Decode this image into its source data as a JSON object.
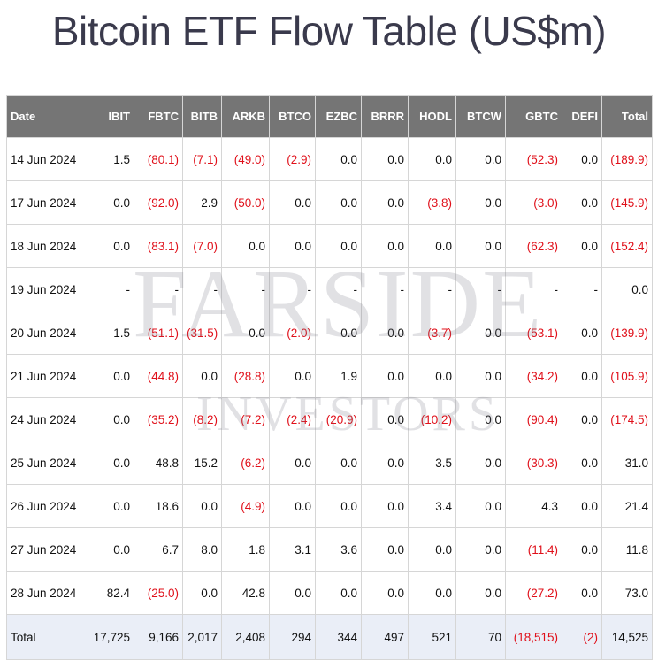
{
  "page": {
    "title": "Bitcoin ETF Flow Table (US$m)"
  },
  "watermark": {
    "line1": "FARSIDE",
    "line2": "INVESTORS"
  },
  "table": {
    "headers": [
      "Date",
      "IBIT",
      "FBTC",
      "BITB",
      "ARKB",
      "BTCO",
      "EZBC",
      "BRRR",
      "HODL",
      "BTCW",
      "GBTC",
      "DEFI",
      "Total"
    ],
    "rows": [
      [
        "14 Jun 2024",
        "1.5",
        "(80.1)",
        "(7.1)",
        "(49.0)",
        "(2.9)",
        "0.0",
        "0.0",
        "0.0",
        "0.0",
        "(52.3)",
        "0.0",
        "(189.9)"
      ],
      [
        "17 Jun 2024",
        "0.0",
        "(92.0)",
        "2.9",
        "(50.0)",
        "0.0",
        "0.0",
        "0.0",
        "(3.8)",
        "0.0",
        "(3.0)",
        "0.0",
        "(145.9)"
      ],
      [
        "18 Jun 2024",
        "0.0",
        "(83.1)",
        "(7.0)",
        "0.0",
        "0.0",
        "0.0",
        "0.0",
        "0.0",
        "0.0",
        "(62.3)",
        "0.0",
        "(152.4)"
      ],
      [
        "19 Jun 2024",
        "-",
        "-",
        "-",
        "-",
        "-",
        "-",
        "-",
        "-",
        "-",
        "-",
        "-",
        "0.0"
      ],
      [
        "20 Jun 2024",
        "1.5",
        "(51.1)",
        "(31.5)",
        "0.0",
        "(2.0)",
        "0.0",
        "0.0",
        "(3.7)",
        "0.0",
        "(53.1)",
        "0.0",
        "(139.9)"
      ],
      [
        "21 Jun 2024",
        "0.0",
        "(44.8)",
        "0.0",
        "(28.8)",
        "0.0",
        "1.9",
        "0.0",
        "0.0",
        "0.0",
        "(34.2)",
        "0.0",
        "(105.9)"
      ],
      [
        "24 Jun 2024",
        "0.0",
        "(35.2)",
        "(8.2)",
        "(7.2)",
        "(2.4)",
        "(20.9)",
        "0.0",
        "(10.2)",
        "0.0",
        "(90.4)",
        "0.0",
        "(174.5)"
      ],
      [
        "25 Jun 2024",
        "0.0",
        "48.8",
        "15.2",
        "(6.2)",
        "0.0",
        "0.0",
        "0.0",
        "3.5",
        "0.0",
        "(30.3)",
        "0.0",
        "31.0"
      ],
      [
        "26 Jun 2024",
        "0.0",
        "18.6",
        "0.0",
        "(4.9)",
        "0.0",
        "0.0",
        "0.0",
        "3.4",
        "0.0",
        "4.3",
        "0.0",
        "21.4"
      ],
      [
        "27 Jun 2024",
        "0.0",
        "6.7",
        "8.0",
        "1.8",
        "3.1",
        "3.6",
        "0.0",
        "0.0",
        "0.0",
        "(11.4)",
        "0.0",
        "11.8"
      ],
      [
        "28 Jun 2024",
        "82.4",
        "(25.0)",
        "0.0",
        "42.8",
        "0.0",
        "0.0",
        "0.0",
        "0.0",
        "0.0",
        "(27.2)",
        "0.0",
        "73.0"
      ]
    ],
    "total_row": [
      "Total",
      "17,725",
      "9,166",
      "2,017",
      "2,408",
      "294",
      "344",
      "497",
      "521",
      "70",
      "(18,515)",
      "(2)",
      "14,525"
    ]
  },
  "colors": {
    "header_bg": "#757575",
    "negative": "#e0101a",
    "total_row_bg": "#eaeef7"
  }
}
